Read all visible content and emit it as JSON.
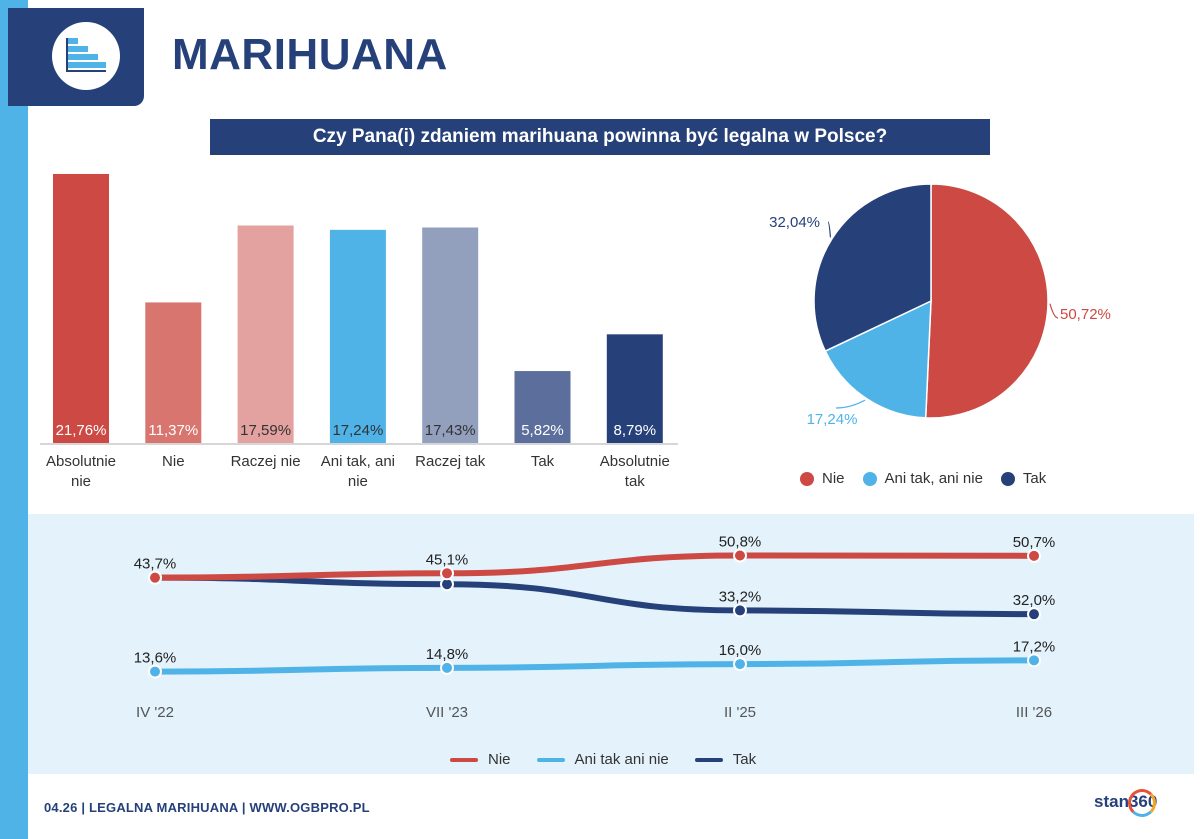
{
  "page": {
    "title": "MARIHUANA",
    "question": "Czy Pana(i) zdaniem marihuana powinna być legalna w Polsce?",
    "footer": "04.26 | LEGALNA MARIHUANA | WWW.OGBPRO.PL",
    "brand": "stan360",
    "colors": {
      "navy": "#26417a",
      "red": "#cc4a43",
      "lightblue": "#4fb3e8",
      "panel": "#e4f2fb"
    }
  },
  "chart_data": [
    {
      "type": "bar",
      "categories": [
        "Absolutnie nie",
        "Nie",
        "Raczej nie",
        "Ani tak, ani nie",
        "Raczej tak",
        "Tak",
        "Absolutnie tak"
      ],
      "category_lines": [
        [
          "Absolutnie",
          "nie"
        ],
        [
          "Nie"
        ],
        [
          "Raczej nie"
        ],
        [
          "Ani tak, ani",
          "nie"
        ],
        [
          "Raczej tak"
        ],
        [
          "Tak"
        ],
        [
          "Absolutnie",
          "tak"
        ]
      ],
      "values": [
        21.76,
        11.37,
        17.59,
        17.24,
        17.43,
        5.82,
        8.79
      ],
      "value_labels": [
        "21,76%",
        "11,37%",
        "17,59%",
        "17,24%",
        "17,43%",
        "5,82%",
        "8,79%"
      ],
      "colors": [
        "#cc4a43",
        "#d8756e",
        "#e3a19f",
        "#4fb3e8",
        "#929fbd",
        "#5b6e9c",
        "#26417a"
      ],
      "label_colors": [
        "#ffffff",
        "#ffffff",
        "#333333",
        "#333333",
        "#333333",
        "#ffffff",
        "#ffffff"
      ],
      "ylim": [
        0,
        22
      ]
    },
    {
      "type": "pie",
      "labels": [
        "Nie",
        "Ani tak, ani nie",
        "Tak"
      ],
      "values": [
        50.72,
        17.24,
        32.04
      ],
      "value_labels": [
        "50,72%",
        "17,24%",
        "32,04%"
      ],
      "colors": [
        "#cc4a43",
        "#4fb3e8",
        "#26417a"
      ],
      "legend_position": "bottom"
    },
    {
      "type": "line",
      "x": [
        "IV '22",
        "VII '23",
        "II '25",
        "III '26"
      ],
      "series": [
        {
          "name": "Nie",
          "values": [
            43.7,
            45.1,
            50.8,
            50.7
          ],
          "labels": [
            "43,7%",
            "45,1%",
            "50,8%",
            "50,7%"
          ],
          "color": "#cc4a43"
        },
        {
          "name": "Ani tak ani nie",
          "values": [
            13.6,
            14.8,
            16.0,
            17.2
          ],
          "labels": [
            "13,6%",
            "14,8%",
            "16,0%",
            "17,2%"
          ],
          "color": "#4fb3e8"
        },
        {
          "name": "Tak",
          "values": [
            43.7,
            41.6,
            33.2,
            32.0
          ],
          "labels": [
            "",
            "",
            "33,2%",
            "32,0%"
          ],
          "color": "#26417a"
        }
      ],
      "legend_position": "bottom"
    }
  ]
}
